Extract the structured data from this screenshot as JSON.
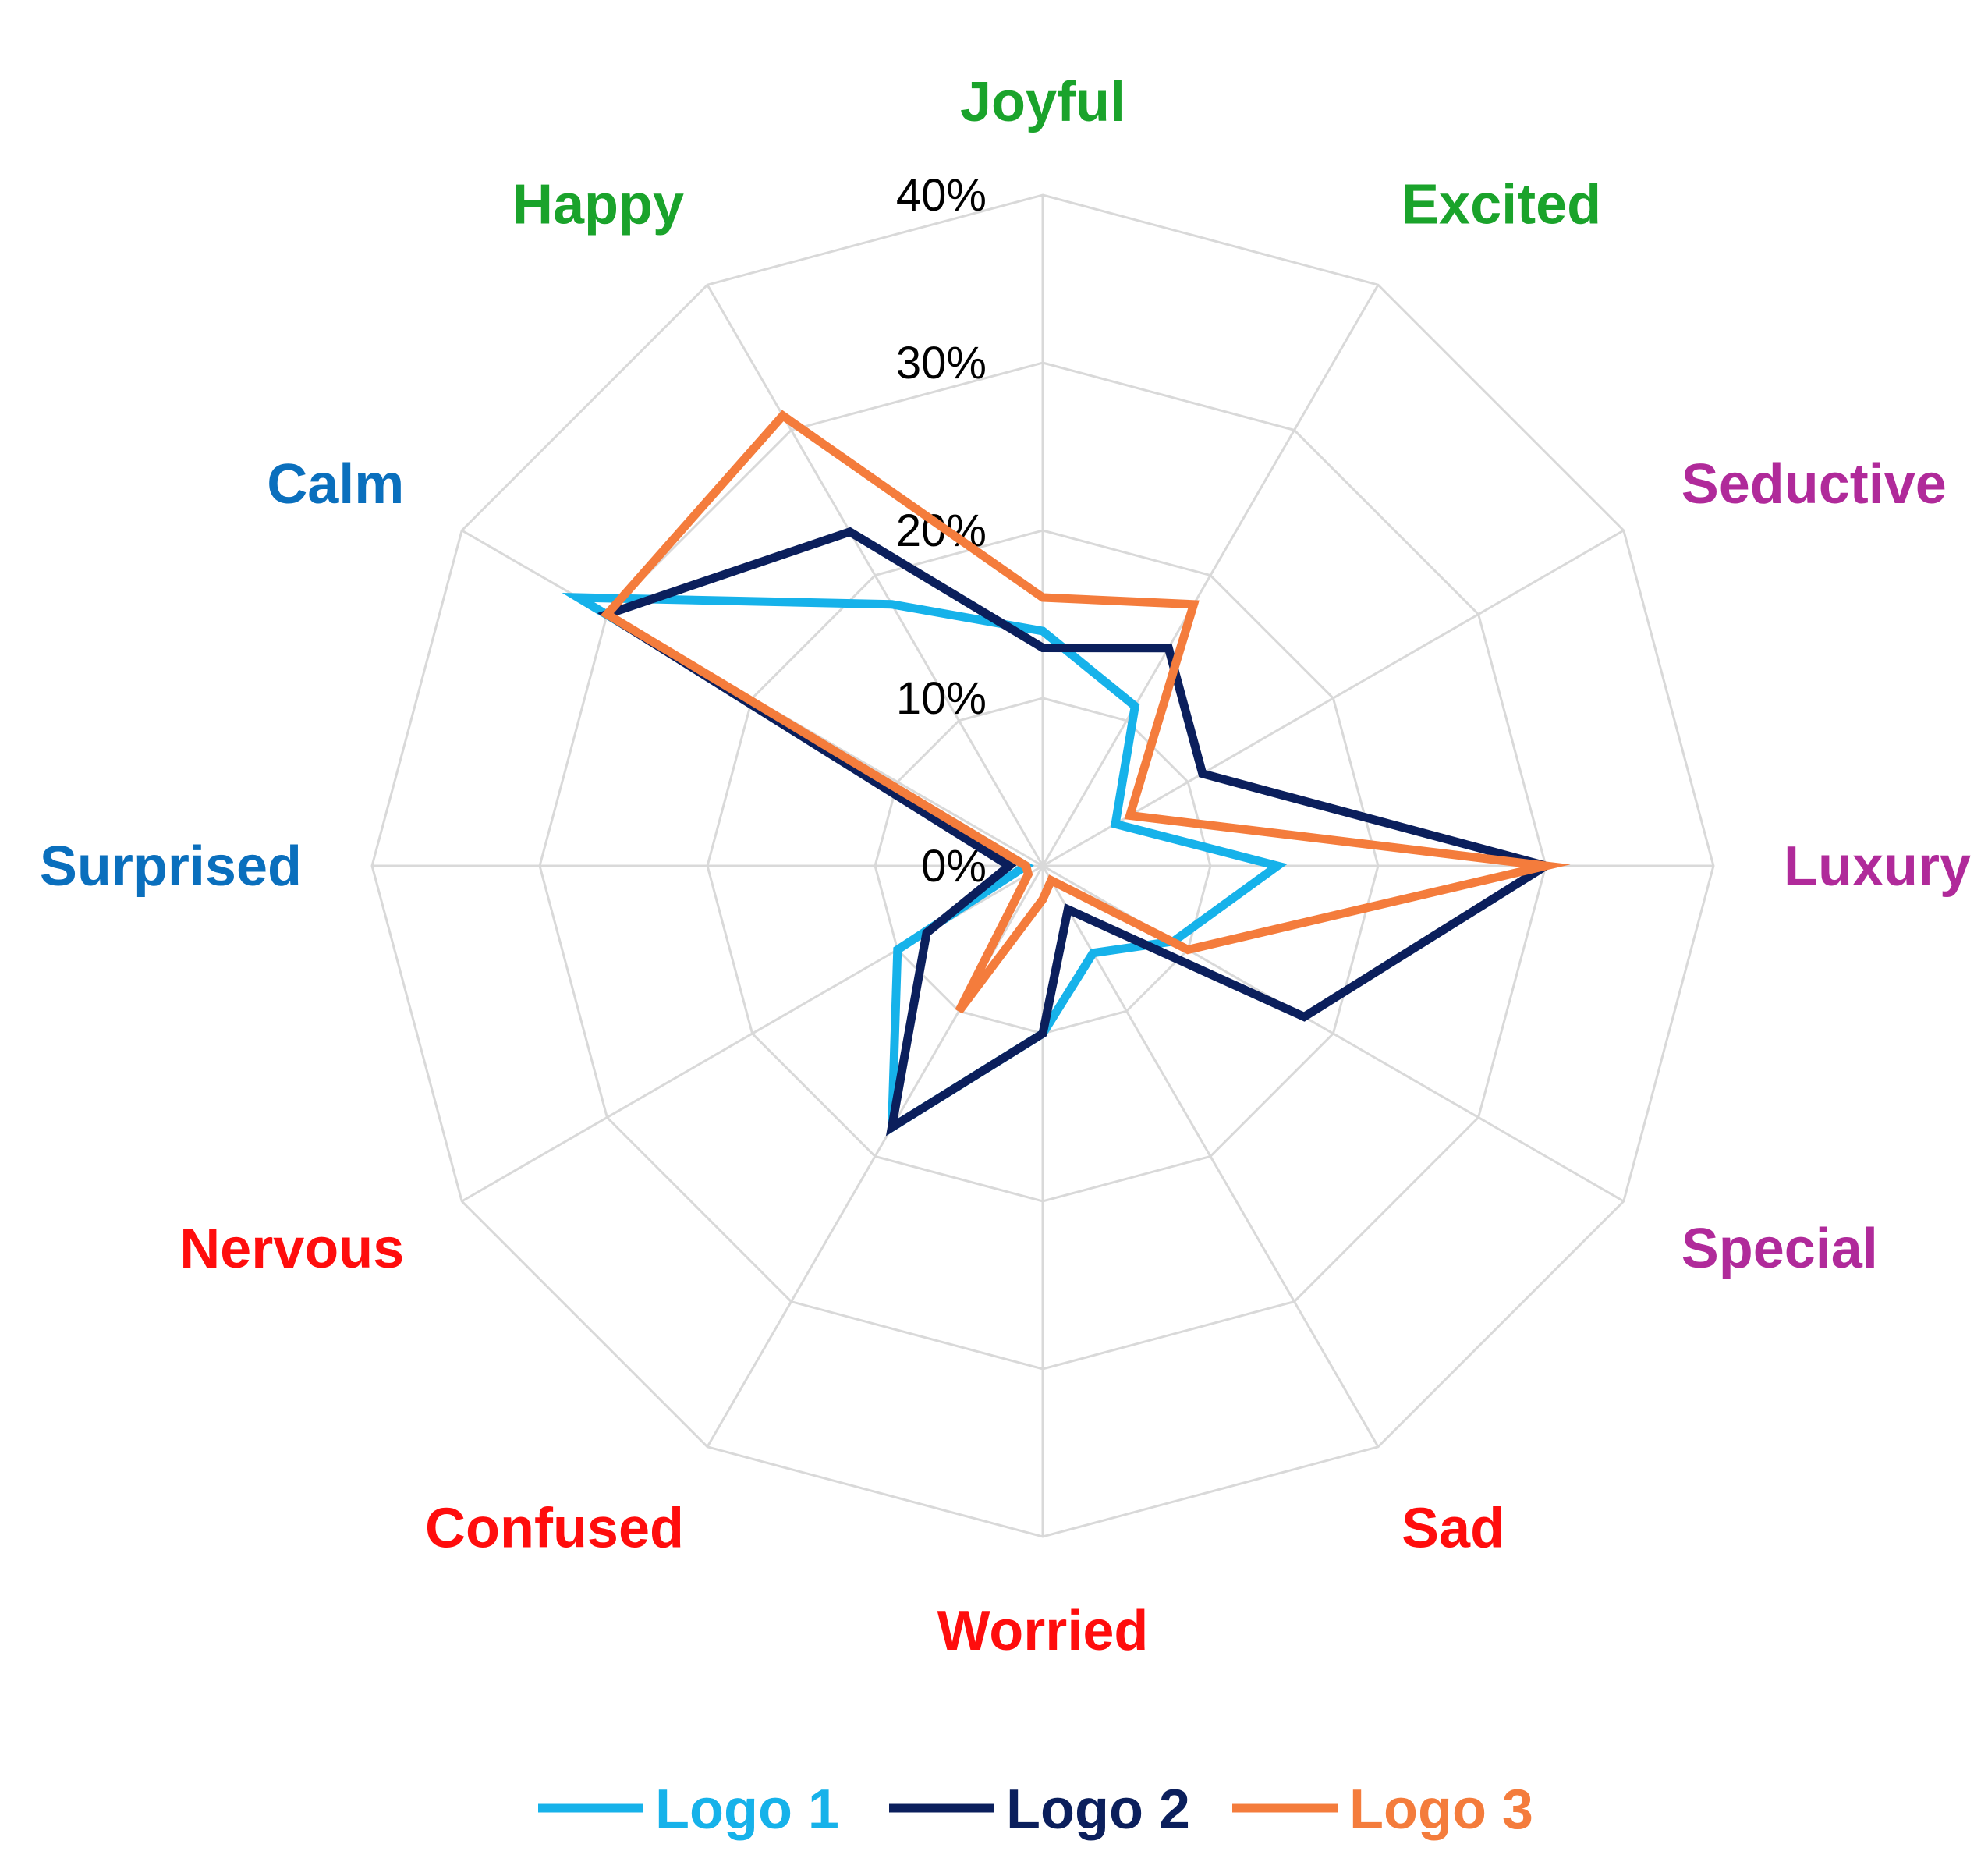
{
  "chart_data": {
    "type": "radar",
    "title": "",
    "rlim": [
      0,
      40
    ],
    "ticks": [
      "0%",
      "10%",
      "20%",
      "30%",
      "40%"
    ],
    "tick_values": [
      0,
      10,
      20,
      30,
      40
    ],
    "categories": [
      {
        "label": "Joyful",
        "color": "#1aa32b"
      },
      {
        "label": "Excited",
        "color": "#1aa32b"
      },
      {
        "label": "Seductive",
        "color": "#b02a9a"
      },
      {
        "label": "Luxury",
        "color": "#b02a9a"
      },
      {
        "label": "Special",
        "color": "#b02a9a"
      },
      {
        "label": "Sad",
        "color": "#ff0d0d"
      },
      {
        "label": "Worried",
        "color": "#ff0d0d"
      },
      {
        "label": "Confused",
        "color": "#ff0d0d"
      },
      {
        "label": "Nervous",
        "color": "#ff0d0d"
      },
      {
        "label": "Surprised",
        "color": "#0a6fbd"
      },
      {
        "label": "Calm",
        "color": "#0a6fbd"
      },
      {
        "label": "Happy",
        "color": "#1aa32b"
      }
    ],
    "series": [
      {
        "name": "Logo 1",
        "color": "#16b2ea",
        "values": [
          14,
          11,
          5,
          14,
          9,
          6,
          10,
          18,
          10,
          1,
          32,
          18
        ]
      },
      {
        "name": "Logo 2",
        "color": "#0b1f5c",
        "values": [
          13,
          15,
          11,
          30,
          18,
          3,
          10,
          18,
          8,
          2,
          30,
          23
        ]
      },
      {
        "name": "Logo 3",
        "color": "#f47c3c",
        "values": [
          16,
          18,
          6,
          30,
          10,
          1,
          2,
          10,
          1,
          1,
          30,
          31
        ]
      }
    ],
    "legend": {
      "position": "bottom"
    },
    "grid": true
  }
}
